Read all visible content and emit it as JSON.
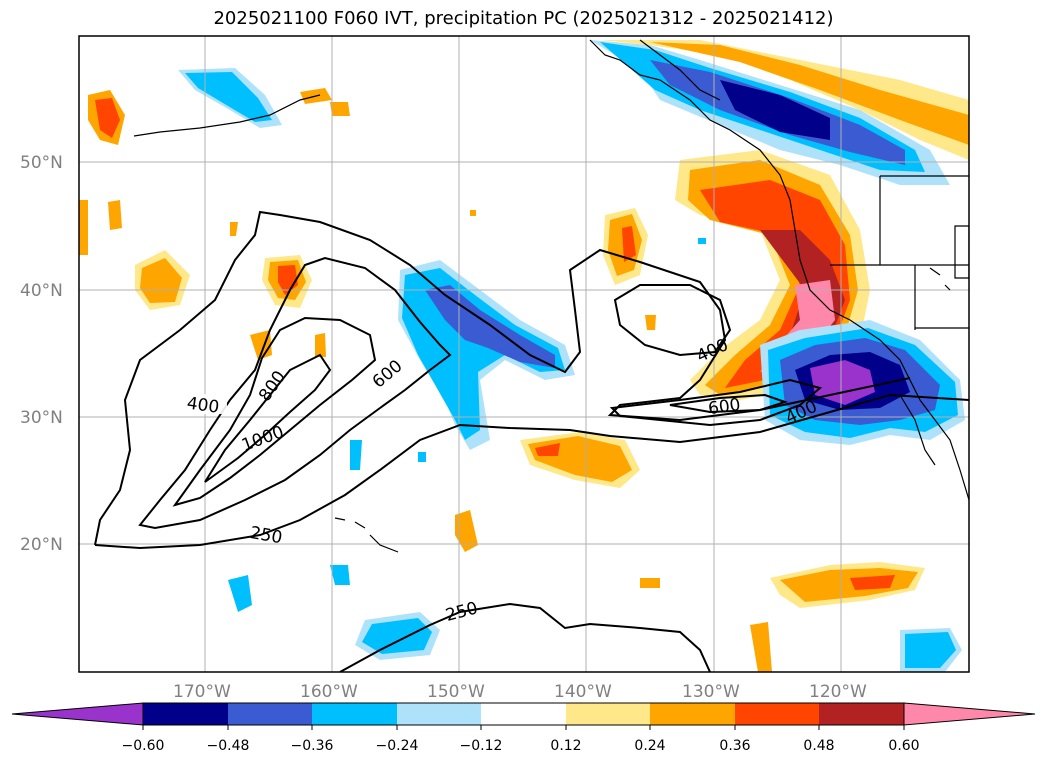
{
  "title": "2025021100 F060 IVT, precipitation PC (2025021312 - 2025021412)",
  "map": {
    "lon_labels": [
      "170°W",
      "160°W",
      "150°W",
      "140°W",
      "130°W",
      "120°W"
    ],
    "lat_labels": [
      "50°N",
      "40°N",
      "30°N",
      "20°N"
    ],
    "contour_labels": [
      "400",
      "800",
      "1000",
      "600",
      "250",
      "250",
      "400",
      "600",
      "400"
    ],
    "grid": true
  },
  "colorbar": {
    "ticks": [
      "−0.60",
      "−0.48",
      "−0.36",
      "−0.24",
      "−0.12",
      "0.12",
      "0.24",
      "0.36",
      "0.48",
      "0.60"
    ],
    "colors": [
      "#9933cc",
      "#00008b",
      "#3a5bd1",
      "#00bfff",
      "#aee2fa",
      "#ffffff",
      "#ffe88a",
      "#ffa500",
      "#ff4500",
      "#b22222",
      "#ff88aa"
    ]
  },
  "palette": {
    "purple": "#9933cc",
    "navy": "#00008b",
    "blue": "#3a5bd1",
    "cyan": "#00bfff",
    "lightblue": "#aee2fa",
    "yellow": "#ffe88a",
    "orange": "#ffa500",
    "redorange": "#ff4500",
    "darkred": "#b22222",
    "pink": "#ff88aa"
  }
}
